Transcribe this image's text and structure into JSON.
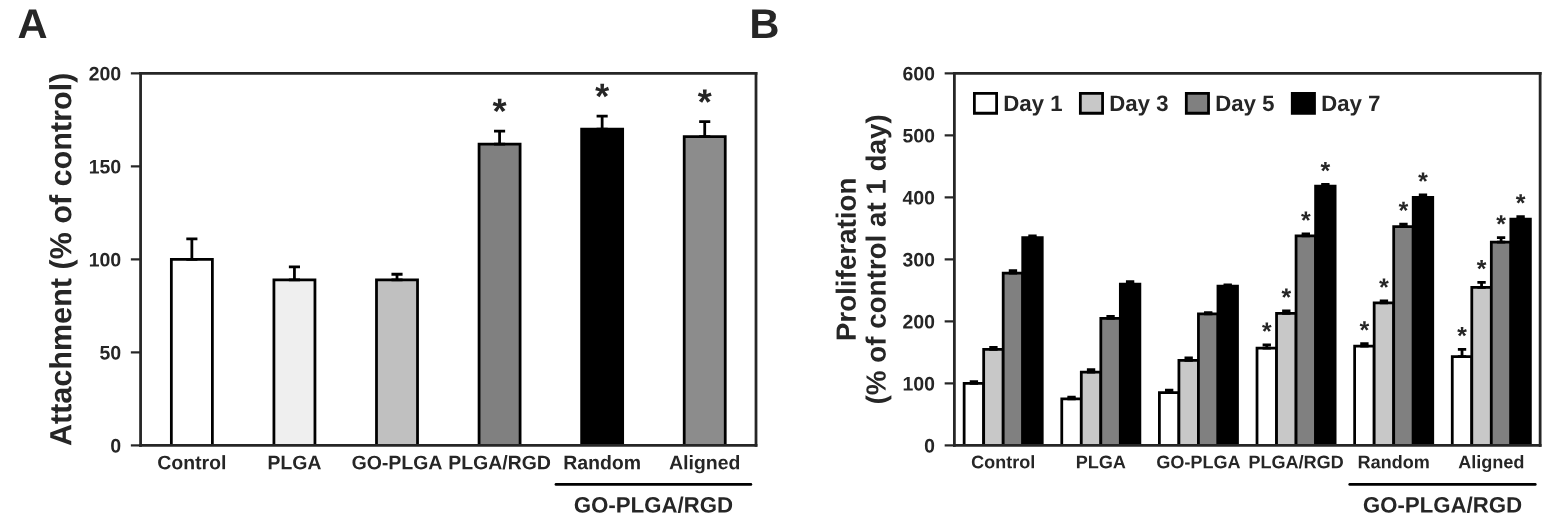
{
  "chart_data": [
    {
      "type": "bar",
      "title": "A",
      "ylabel": "Attachment (% of control)",
      "categories": [
        "Control",
        "PLGA",
        "GO-PLGA",
        "PLGA/RGD",
        "Random",
        "Aligned"
      ],
      "values": [
        100,
        89,
        89,
        162,
        170,
        166
      ],
      "colors": [
        "#ffffff",
        "#efefef",
        "#c0c0c0",
        "#808080",
        "#000000",
        "#8c8c8c"
      ],
      "errors": [
        [
          100,
          111
        ],
        [
          89,
          96
        ],
        [
          89,
          92
        ],
        [
          162,
          169
        ],
        [
          170,
          177
        ],
        [
          166,
          174
        ]
      ],
      "value_labels": [
        null,
        null,
        null,
        "*",
        "*",
        "*"
      ],
      "ylim": [
        0,
        200
      ],
      "yticks": [
        0,
        50,
        100,
        150,
        200
      ],
      "annotations": [
        "GO-PLGA/RGD"
      ]
    },
    {
      "type": "bar",
      "title": "B",
      "ylabel": "Proliferation\n(% of control at 1 day)",
      "categories": [
        "Control",
        "PLGA",
        "GO-PLGA",
        "PLGA/RGD",
        "Random",
        "Aligned"
      ],
      "series": [
        {
          "name": "Day 1",
          "color": "#ffffff",
          "values": [
            100,
            75,
            85,
            157,
            160,
            143
          ],
          "errors": [
            [
              100,
              103
            ],
            [
              75,
              78
            ],
            [
              85,
              89
            ],
            [
              157,
              162
            ],
            [
              160,
              164
            ],
            [
              143,
              155
            ]
          ],
          "value_labels": [
            null,
            null,
            null,
            "*",
            "*",
            "*"
          ]
        },
        {
          "name": "Day 3",
          "color": "#c8c8c8",
          "values": [
            155,
            118,
            137,
            213,
            230,
            255
          ],
          "errors": [
            [
              155,
              158
            ],
            [
              118,
              122
            ],
            [
              137,
              141
            ],
            [
              213,
              217
            ],
            [
              230,
              233
            ],
            [
              255,
              263
            ]
          ],
          "value_labels": [
            null,
            null,
            null,
            "*",
            "*",
            "*"
          ]
        },
        {
          "name": "Day 5",
          "color": "#808080",
          "values": [
            278,
            205,
            212,
            338,
            353,
            328
          ],
          "errors": [
            [
              278,
              282
            ],
            [
              205,
              208
            ],
            [
              212,
              214
            ],
            [
              338,
              341
            ],
            [
              353,
              357
            ],
            [
              328,
              335
            ]
          ],
          "value_labels": [
            null,
            null,
            null,
            "*",
            "*",
            "*"
          ]
        },
        {
          "name": "Day 7",
          "color": "#000000",
          "values": [
            335,
            260,
            257,
            418,
            400,
            365
          ],
          "errors": [
            [
              335,
              338
            ],
            [
              260,
              264
            ],
            [
              257,
              259
            ],
            [
              418,
              421
            ],
            [
              400,
              404
            ],
            [
              365,
              369
            ]
          ],
          "value_labels": [
            null,
            null,
            null,
            "*",
            "*",
            "*"
          ]
        }
      ],
      "ylim": [
        0,
        600
      ],
      "yticks": [
        0,
        100,
        200,
        300,
        400,
        500,
        600
      ],
      "legend": "top left",
      "annotations": [
        "GO-PLGA/RGD"
      ]
    }
  ]
}
